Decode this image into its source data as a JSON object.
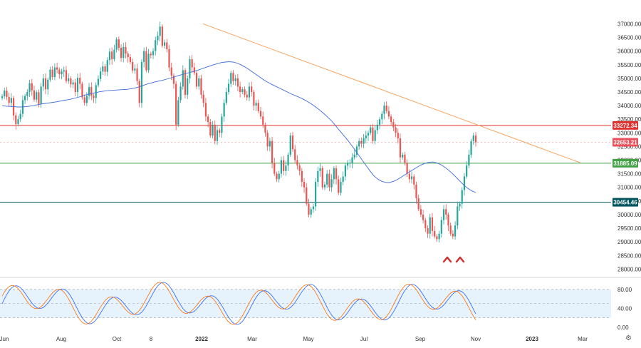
{
  "chart_data": [
    {
      "type": "candlestick",
      "yaxis": {
        "range": [
          27800,
          37300
        ],
        "ticks": [
          "37000.00",
          "36500.00",
          "36000.00",
          "35500.00",
          "35000.00",
          "34500.00",
          "34000.00",
          "33500.00",
          "33000.00",
          "32500.00",
          "32000.00",
          "31500.00",
          "31000.00",
          "30500.00",
          "30000.00",
          "29500.00",
          "29000.00",
          "28500.00",
          "28000.00"
        ],
        "tick_values": [
          37000,
          36500,
          36000,
          35500,
          35000,
          34500,
          34000,
          33500,
          33000,
          32500,
          32000,
          31500,
          31000,
          30500,
          30000,
          29500,
          29000,
          28500,
          28000
        ]
      },
      "xaxis": {
        "ticks": [
          "Jun",
          "Aug",
          "Oct",
          "8",
          "2022",
          "Mar",
          "May",
          "Jul",
          "Sep",
          "Nov",
          "2023",
          "Mar"
        ],
        "bold_ticks": [
          "2022",
          "2023"
        ]
      },
      "horizontal_levels": [
        {
          "value": 33272.34,
          "label": "33272.34",
          "color": "#e03131"
        },
        {
          "value": 32653.21,
          "label": "32653.21",
          "color": "#e8505b"
        },
        {
          "value": 31885.09,
          "label": "31885.09",
          "color": "#43a047"
        },
        {
          "value": 30454.46,
          "label": "30454.46",
          "color": "#00565c"
        }
      ],
      "trendline": {
        "from": [
          37000,
          "Jan 2022"
        ],
        "to": [
          31900,
          "Mar 2023"
        ],
        "color": "#f5a25d"
      },
      "moving_average": {
        "color": "#3f6bd6"
      },
      "markers": [
        {
          "type": "double-bottom-caret",
          "color": "#d32f2f",
          "lows": [
            28600,
            28700
          ]
        }
      ],
      "colors": {
        "up": "#26a69a",
        "down": "#ef5350"
      },
      "closes": [
        34340,
        34550,
        34320,
        34100,
        34280,
        33640,
        33320,
        33500,
        33700,
        34200,
        34350,
        34500,
        34820,
        34560,
        34220,
        34490,
        34060,
        34700,
        35000,
        34600,
        34950,
        35320,
        35050,
        35400,
        35320,
        35150,
        35250,
        35300,
        34900,
        35000,
        34780,
        34850,
        34500,
        35020,
        34800,
        34300,
        34100,
        34360,
        34680,
        34360,
        34280,
        34750,
        34980,
        35250,
        35440,
        35240,
        35670,
        35980,
        35700,
        36050,
        36430,
        36120,
        35750,
        36150,
        35910,
        35780,
        35600,
        35290,
        35360,
        34900,
        34100,
        35600,
        36000,
        35300,
        35900,
        35850,
        36000,
        36400,
        36560,
        36900,
        36200,
        36320,
        36070,
        35400,
        35100,
        34800,
        33300,
        34200,
        34700,
        35300,
        34400,
        35000,
        35700,
        35400,
        35200,
        34700,
        35000,
        34400,
        34100,
        33600,
        33400,
        32900,
        33300,
        32700,
        33100,
        33000,
        33600,
        34100,
        34500,
        34800,
        35200,
        34900,
        35000,
        34700,
        34500,
        34600,
        34400,
        34300,
        34700,
        34500,
        34000,
        34100,
        33800,
        33600,
        33300,
        33000,
        32500,
        32700,
        31900,
        31500,
        31300,
        31500,
        32000,
        31600,
        31800,
        32200,
        32900,
        32400,
        32000,
        31800,
        31600,
        31200,
        31000,
        30400,
        30000,
        30200,
        30300,
        31200,
        31600,
        31700,
        31000,
        31100,
        31500,
        31000,
        31300,
        31700,
        31300,
        30800,
        31200,
        31400,
        31800,
        31900,
        31900,
        32100,
        32200,
        32500,
        32700,
        32600,
        32800,
        32900,
        33000,
        33200,
        32700,
        33100,
        33300,
        33500,
        33700,
        34000,
        33800,
        33600,
        33400,
        33200,
        33000,
        32800,
        32100,
        32200,
        31900,
        31500,
        31300,
        31400,
        31100,
        30600,
        30200,
        30000,
        29800,
        29500,
        29300,
        29900,
        29400,
        29200,
        29100,
        29300,
        29800,
        30200,
        30000,
        29600,
        29300,
        29200,
        29600,
        30300,
        30400,
        30900,
        31400,
        31800,
        32200,
        32700,
        32900,
        32653
      ],
      "ma": [
        34000,
        33980,
        33970,
        33960,
        33950,
        33950,
        33960,
        33980,
        34000,
        34030,
        34060,
        34080,
        34100,
        34120,
        34140,
        34170,
        34200,
        34220,
        34250,
        34290,
        34330,
        34380,
        34420,
        34450,
        34480,
        34510,
        34530,
        34550,
        34560,
        34570,
        34580,
        34590,
        34600,
        34620,
        34650,
        34690,
        34740,
        34790,
        34830,
        34870,
        34900,
        34930,
        34970,
        35010,
        35050,
        35100,
        35140,
        35180,
        35220,
        35260,
        35300,
        35350,
        35400,
        35450,
        35500,
        35540,
        35580,
        35600,
        35610,
        35600,
        35560,
        35500,
        35420,
        35330,
        35230,
        35130,
        35030,
        34930,
        34850,
        34770,
        34700,
        34630,
        34560,
        34490,
        34420,
        34360,
        34300,
        34230,
        34150,
        34060,
        33960,
        33850,
        33730,
        33600,
        33460,
        33300,
        33120,
        32950,
        32780,
        32600,
        32400,
        32200,
        32000,
        31800,
        31600,
        31420,
        31300,
        31220,
        31180,
        31180,
        31220,
        31290,
        31380,
        31470,
        31560,
        31650,
        31740,
        31820,
        31880,
        31920,
        31930,
        31900,
        31840,
        31750,
        31640,
        31510,
        31370,
        31220,
        31080,
        30960,
        30870,
        30810
      ],
      "stochastic": {
        "yaxis_ticks": [
          "80.00",
          "40.00",
          "0.00"
        ],
        "tick_values": [
          80,
          40,
          0
        ],
        "band": [
          80,
          20
        ],
        "midline": 50,
        "line_colors": [
          "#2962ff",
          "#ff6d00"
        ]
      }
    }
  ]
}
